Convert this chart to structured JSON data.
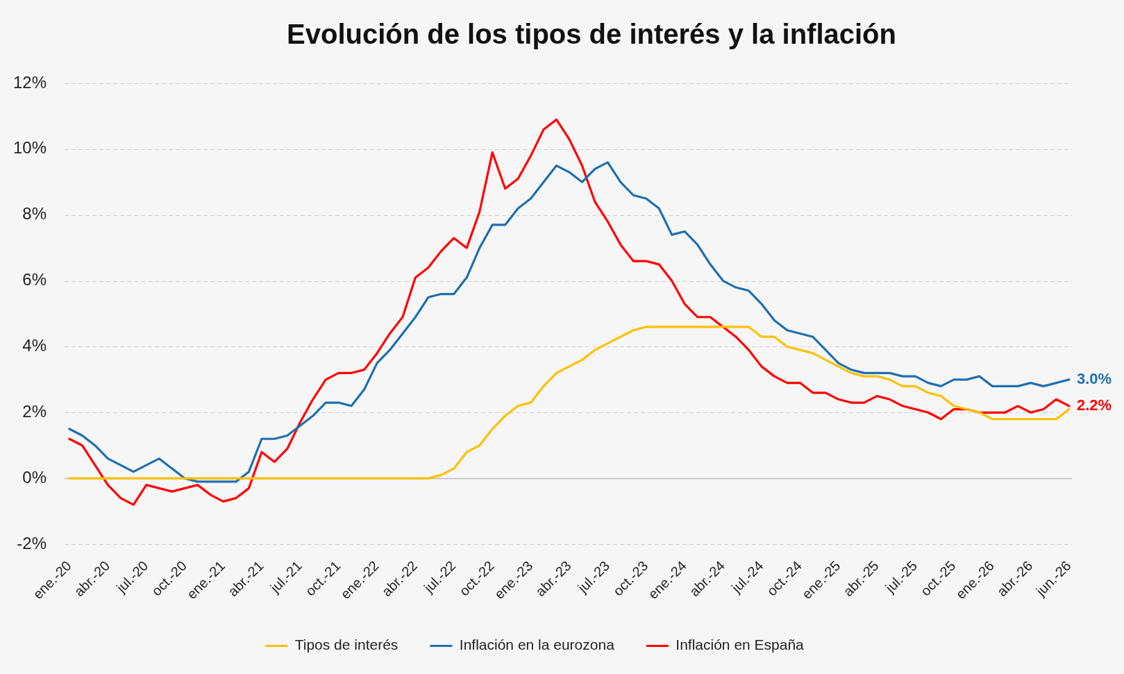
{
  "chart_data": {
    "type": "line",
    "title": "Evolución de los tipos de interés y la inflación",
    "categories": [
      "ene.-20",
      null,
      null,
      "abr.-20",
      null,
      null,
      "jul.-20",
      null,
      null,
      "oct.-20",
      null,
      null,
      "ene.-21",
      null,
      null,
      "abr.-21",
      null,
      null,
      "jul.-21",
      null,
      null,
      "oct.-21",
      null,
      null,
      "ene.-22",
      null,
      null,
      "abr.-22",
      null,
      null,
      "jul.-22",
      null,
      null,
      "oct.-22",
      null,
      null,
      "ene.-23",
      null,
      null,
      "abr.-23",
      null,
      null,
      "jul.-23",
      null,
      null,
      "oct.-23",
      null,
      null,
      "ene.-24",
      null,
      null,
      "abr.-24",
      null,
      null,
      "jul.-24",
      null,
      null,
      "oct.-24",
      null,
      null,
      "ene.-25",
      null,
      null,
      "abr.-25",
      null,
      null,
      "jul.-25",
      null,
      null,
      "oct.-25",
      null,
      null,
      "ene.-26",
      null,
      null,
      "abr.-26",
      null,
      null,
      "jun.-26"
    ],
    "series": [
      {
        "name": "Tipos de interés",
        "color": "#ffc000",
        "values": [
          0,
          0,
          0,
          0,
          0,
          0,
          0,
          0,
          0,
          0,
          0,
          0,
          0,
          0,
          0,
          0,
          0,
          0,
          0,
          0,
          0,
          0,
          0,
          0,
          0,
          0,
          0,
          0,
          0,
          0.1,
          0.3,
          0.8,
          1.0,
          1.5,
          1.9,
          2.2,
          2.3,
          2.8,
          3.2,
          3.4,
          3.6,
          3.9,
          4.1,
          4.3,
          4.5,
          4.6,
          4.6,
          4.6,
          4.6,
          4.6,
          4.6,
          4.6,
          4.6,
          4.6,
          4.3,
          4.3,
          4.0,
          3.9,
          3.8,
          3.6,
          3.4,
          3.2,
          3.1,
          3.1,
          3.0,
          2.8,
          2.8,
          2.6,
          2.5,
          2.2,
          2.1,
          2.0,
          1.8,
          1.8,
          1.8,
          1.8,
          1.8,
          1.8,
          2.1
        ]
      },
      {
        "name": "Inflación en la eurozona",
        "color": "#1f6fb0",
        "values": [
          1.5,
          1.3,
          1.0,
          0.6,
          0.4,
          0.2,
          0.4,
          0.6,
          0.3,
          0.0,
          -0.1,
          -0.1,
          -0.1,
          -0.1,
          0.2,
          1.2,
          1.2,
          1.3,
          1.6,
          1.9,
          2.3,
          2.3,
          2.2,
          2.7,
          3.5,
          3.9,
          4.4,
          4.9,
          5.5,
          5.6,
          5.6,
          6.1,
          7.0,
          7.7,
          7.7,
          8.2,
          8.5,
          9.0,
          9.5,
          9.3,
          9.0,
          9.4,
          9.6,
          9.0,
          8.6,
          8.5,
          8.2,
          7.4,
          7.5,
          7.1,
          6.5,
          6.0,
          5.8,
          5.7,
          5.3,
          4.8,
          4.5,
          4.4,
          4.3,
          3.9,
          3.5,
          3.3,
          3.2,
          3.2,
          3.2,
          3.1,
          3.1,
          2.9,
          2.8,
          3.0,
          3.0,
          3.1,
          2.8,
          2.8,
          2.8,
          2.9,
          2.8,
          2.9,
          3.0
        ],
        "value_labels": [
          null,
          null,
          null,
          null,
          null,
          null,
          null,
          null,
          null,
          null,
          null,
          null,
          null,
          null,
          null,
          null,
          null,
          null,
          null,
          null,
          null,
          null,
          null,
          null,
          null,
          null,
          null,
          null,
          null,
          null,
          null,
          null,
          null,
          null,
          null,
          null,
          null,
          null,
          null,
          null,
          null,
          null,
          null,
          null,
          null,
          null,
          null,
          null,
          null,
          null,
          null,
          null,
          null,
          null,
          null,
          null,
          null,
          null,
          null,
          null,
          null,
          null,
          null,
          null,
          null,
          null,
          null,
          null,
          null,
          null,
          null,
          null,
          null,
          null,
          null,
          null,
          null,
          null,
          "3.0%"
        ]
      },
      {
        "name": "Inflación en España",
        "color": "#ff0000",
        "values": [
          1.2,
          1.0,
          0.4,
          -0.2,
          -0.6,
          -0.8,
          -0.2,
          -0.3,
          -0.4,
          -0.3,
          -0.2,
          -0.5,
          -0.7,
          -0.6,
          -0.3,
          0.8,
          0.5,
          0.9,
          1.7,
          2.4,
          3.0,
          3.2,
          3.2,
          3.3,
          3.8,
          4.4,
          4.9,
          6.1,
          6.4,
          6.9,
          7.3,
          7.0,
          8.1,
          9.9,
          8.8,
          9.1,
          9.8,
          10.6,
          10.9,
          10.3,
          9.5,
          8.4,
          7.8,
          7.1,
          6.6,
          6.6,
          6.5,
          6.0,
          5.3,
          4.9,
          4.9,
          4.6,
          4.3,
          3.9,
          3.4,
          3.1,
          2.9,
          2.9,
          2.6,
          2.6,
          2.4,
          2.3,
          2.3,
          2.5,
          2.4,
          2.2,
          2.1,
          2.0,
          1.8,
          2.1,
          2.1,
          2.0,
          2.0,
          2.0,
          2.2,
          2.0,
          2.1,
          2.4,
          2.2
        ],
        "value_labels": [
          null,
          null,
          null,
          null,
          null,
          null,
          null,
          null,
          null,
          null,
          null,
          null,
          null,
          null,
          null,
          null,
          null,
          null,
          null,
          null,
          null,
          null,
          null,
          null,
          null,
          null,
          null,
          null,
          null,
          null,
          null,
          null,
          null,
          null,
          null,
          null,
          null,
          null,
          null,
          null,
          null,
          null,
          null,
          null,
          null,
          null,
          null,
          null,
          null,
          null,
          null,
          null,
          null,
          null,
          null,
          null,
          null,
          null,
          null,
          null,
          null,
          null,
          null,
          null,
          null,
          null,
          null,
          null,
          null,
          null,
          null,
          null,
          null,
          null,
          null,
          null,
          null,
          null,
          "2.2%"
        ]
      }
    ],
    "ylim": [
      -2,
      12
    ],
    "yticks": [
      {
        "value": -2,
        "label": "-2%"
      },
      {
        "value": 0,
        "label": "0%"
      },
      {
        "value": 2,
        "label": "2%"
      },
      {
        "value": 4,
        "label": "4%"
      },
      {
        "value": 6,
        "label": "6%"
      },
      {
        "value": 8,
        "label": "8%"
      },
      {
        "value": 10,
        "label": "10%"
      },
      {
        "value": 12,
        "label": "12%"
      }
    ],
    "grid": "y",
    "legend": "bottom",
    "marker": "none"
  }
}
